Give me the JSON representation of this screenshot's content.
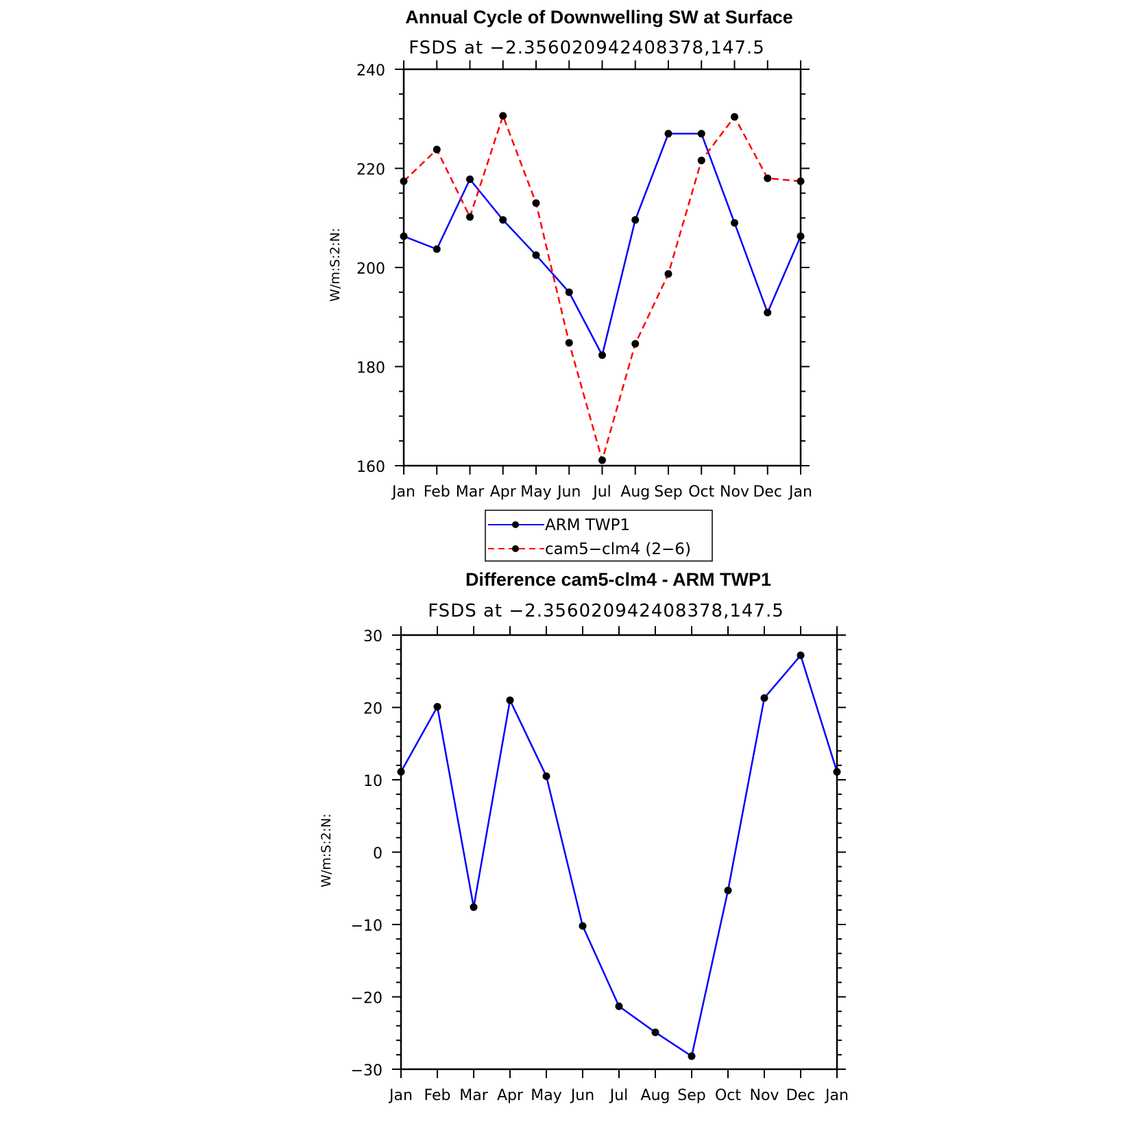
{
  "chart_data": [
    {
      "type": "line",
      "title": "Annual Cycle of Downwelling SW at Surface",
      "subtitle": "FSDS at −2.356020942408378,147.5",
      "xlabel": "",
      "ylabel": "W/m:S:2:N:",
      "categories": [
        "Jan",
        "Feb",
        "Mar",
        "Apr",
        "May",
        "Jun",
        "Jul",
        "Aug",
        "Sep",
        "Oct",
        "Nov",
        "Dec",
        "Jan"
      ],
      "ylim": [
        160,
        240
      ],
      "yticks": [
        "160",
        "180",
        "200",
        "220",
        "240"
      ],
      "series": [
        {
          "name": "ARM TWP1",
          "color": "#0000ff",
          "dash": "solid",
          "values": [
            206.3,
            203.7,
            217.8,
            209.6,
            202.5,
            195.0,
            182.3,
            209.6,
            227.0,
            227.0,
            209.0,
            190.9,
            206.3
          ]
        },
        {
          "name": "cam5−clm4 (2−6)",
          "color": "#ff0000",
          "dash": "dashed",
          "values": [
            217.4,
            223.8,
            210.2,
            230.6,
            213.0,
            184.8,
            161.1,
            184.6,
            198.7,
            221.6,
            230.4,
            218.0,
            217.4
          ]
        }
      ],
      "legend": "below"
    },
    {
      "type": "line",
      "title": "Difference cam5-clm4 - ARM TWP1",
      "subtitle": "FSDS at −2.356020942408378,147.5",
      "xlabel": "",
      "ylabel": "W/m:S:2:N:",
      "categories": [
        "Jan",
        "Feb",
        "Mar",
        "Apr",
        "May",
        "Jun",
        "Jul",
        "Aug",
        "Sep",
        "Oct",
        "Nov",
        "Dec",
        "Jan"
      ],
      "ylim": [
        -30,
        30
      ],
      "yticks": [
        "−30",
        "−20",
        "−10",
        "0",
        "10",
        "20",
        "30"
      ],
      "series": [
        {
          "color": "#0000ff",
          "dash": "solid",
          "values": [
            11.1,
            20.1,
            -7.6,
            21.0,
            10.5,
            -10.2,
            -21.3,
            -24.9,
            -28.2,
            -5.3,
            21.3,
            27.2,
            11.1
          ]
        }
      ]
    }
  ]
}
